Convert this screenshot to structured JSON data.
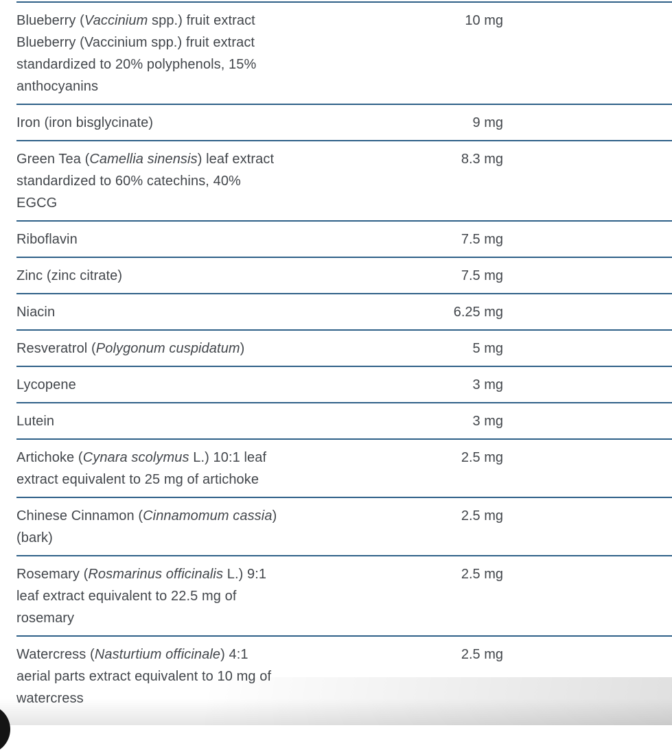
{
  "colors": {
    "divider": "#2d5f87",
    "text": "#42464b",
    "background": "#ffffff",
    "corner_orb": "#141414"
  },
  "table": {
    "rows": [
      {
        "name_runs": [
          {
            "text": "Blueberry (",
            "italic": false
          },
          {
            "text": "Vaccinium",
            "italic": true
          },
          {
            "text": " spp.) fruit extract\nBlueberry (Vaccinium spp.) fruit extract\nstandardized to 20% polyphenols, 15%\nanthocyanins",
            "italic": false
          }
        ],
        "amount": "10 mg"
      },
      {
        "name_runs": [
          {
            "text": "Iron (iron bisglycinate)",
            "italic": false
          }
        ],
        "amount": "9 mg"
      },
      {
        "name_runs": [
          {
            "text": "Green Tea (",
            "italic": false
          },
          {
            "text": "Camellia sinensis",
            "italic": true
          },
          {
            "text": ") leaf extract\nstandardized to 60% catechins, 40%\nEGCG",
            "italic": false
          }
        ],
        "amount": "8.3 mg"
      },
      {
        "name_runs": [
          {
            "text": "Riboflavin",
            "italic": false
          }
        ],
        "amount": "7.5 mg"
      },
      {
        "name_runs": [
          {
            "text": "Zinc (zinc citrate)",
            "italic": false
          }
        ],
        "amount": "7.5 mg"
      },
      {
        "name_runs": [
          {
            "text": "Niacin",
            "italic": false
          }
        ],
        "amount": "6.25 mg"
      },
      {
        "name_runs": [
          {
            "text": "Resveratrol (",
            "italic": false
          },
          {
            "text": "Polygonum cuspidatum",
            "italic": true
          },
          {
            "text": ")",
            "italic": false
          }
        ],
        "amount": "5 mg"
      },
      {
        "name_runs": [
          {
            "text": "Lycopene",
            "italic": false
          }
        ],
        "amount": "3 mg"
      },
      {
        "name_runs": [
          {
            "text": "Lutein",
            "italic": false
          }
        ],
        "amount": "3 mg"
      },
      {
        "name_runs": [
          {
            "text": "Artichoke (",
            "italic": false
          },
          {
            "text": "Cynara scolymus",
            "italic": true
          },
          {
            "text": " L.) 10:1 leaf\nextract equivalent to 25 mg of artichoke",
            "italic": false
          }
        ],
        "amount": "2.5 mg"
      },
      {
        "name_runs": [
          {
            "text": "Chinese Cinnamon (",
            "italic": false
          },
          {
            "text": "Cinnamomum cassia",
            "italic": true
          },
          {
            "text": ")\n(bark)",
            "italic": false
          }
        ],
        "amount": "2.5 mg"
      },
      {
        "name_runs": [
          {
            "text": "Rosemary (",
            "italic": false
          },
          {
            "text": "Rosmarinus officinalis",
            "italic": true
          },
          {
            "text": " L.) 9:1\nleaf extract equivalent to 22.5 mg of\nrosemary",
            "italic": false
          }
        ],
        "amount": "2.5 mg"
      },
      {
        "name_runs": [
          {
            "text": "Watercress (",
            "italic": false
          },
          {
            "text": "Nasturtium officinale",
            "italic": true
          },
          {
            "text": ") 4:1\naerial parts extract equivalent to 10 mg of\nwatercress",
            "italic": false
          }
        ],
        "amount": "2.5 mg"
      }
    ]
  }
}
